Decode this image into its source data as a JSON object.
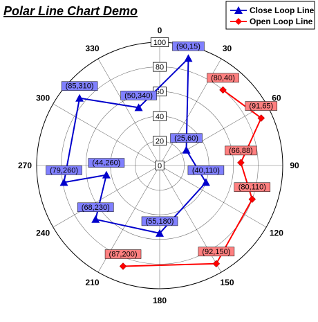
{
  "chart_data": {
    "type": "polar-line",
    "title": "Polar Line Chart Demo",
    "radial_axis": {
      "range": [
        0,
        100
      ],
      "ticks": [
        "0",
        "20",
        "40",
        "60",
        "80",
        "100"
      ]
    },
    "angular_axis": {
      "unit": "degrees",
      "ticks": [
        "0",
        "30",
        "60",
        "90",
        "120",
        "150",
        "180",
        "210",
        "240",
        "270",
        "300",
        "330"
      ]
    },
    "grid": true,
    "legend": {
      "position": "top-right"
    },
    "series": [
      {
        "name": "Close Loop Line",
        "color": "#0000cc",
        "label_bg": "#8080ff",
        "marker": "triangle",
        "closed": true,
        "points": [
          {
            "r": 90,
            "theta": 15,
            "label": "(90,15)"
          },
          {
            "r": 25,
            "theta": 60,
            "label": "(25,60)"
          },
          {
            "r": 40,
            "theta": 110,
            "label": "(40,110)"
          },
          {
            "r": 55,
            "theta": 180,
            "label": "(55,180)"
          },
          {
            "r": 68,
            "theta": 230,
            "label": "(68,230)"
          },
          {
            "r": 44,
            "theta": 260,
            "label": "(44,260)"
          },
          {
            "r": 79,
            "theta": 260,
            "label": "(79,260)"
          },
          {
            "r": 85,
            "theta": 310,
            "label": "(85,310)"
          },
          {
            "r": 50,
            "theta": 340,
            "label": "(50,340)"
          }
        ]
      },
      {
        "name": "Open Loop Line",
        "color": "#ff0000",
        "label_bg": "#ff8080",
        "marker": "diamond",
        "closed": false,
        "points": [
          {
            "r": 80,
            "theta": 40,
            "label": "(80,40)"
          },
          {
            "r": 91,
            "theta": 65,
            "label": "(91,65)"
          },
          {
            "r": 66,
            "theta": 88,
            "label": "(66,88)"
          },
          {
            "r": 80,
            "theta": 110,
            "label": "(80,110)"
          },
          {
            "r": 92,
            "theta": 150,
            "label": "(92,150)"
          },
          {
            "r": 87,
            "theta": 200,
            "label": "(87,200)"
          }
        ]
      }
    ]
  }
}
